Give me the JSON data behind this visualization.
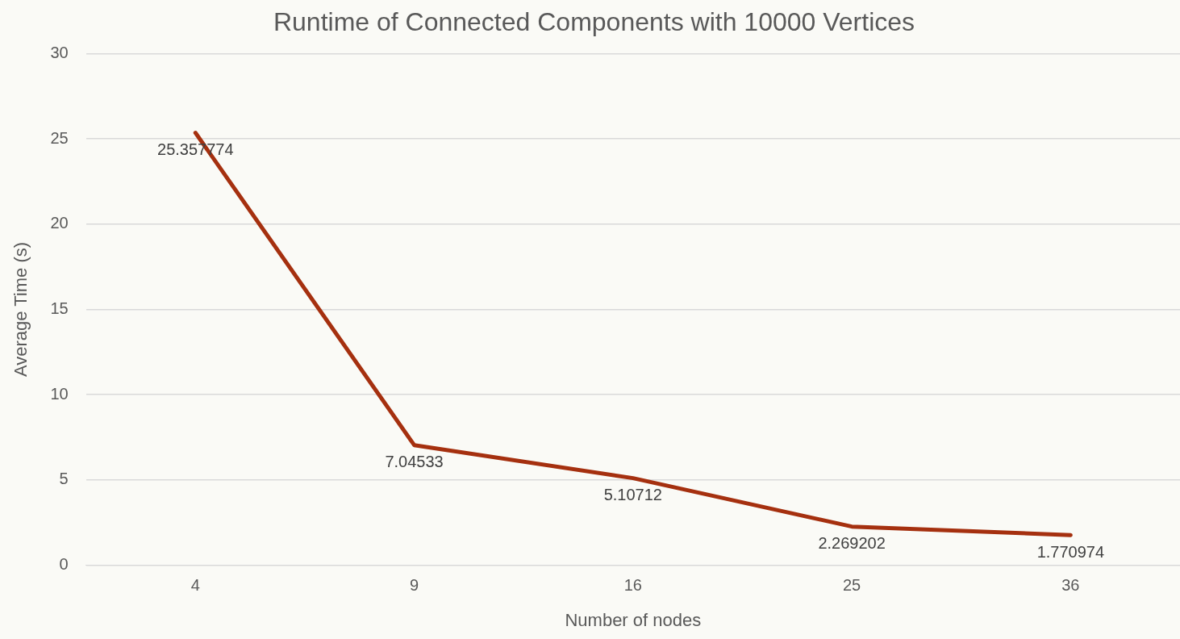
{
  "chart_data": {
    "type": "line",
    "title": "Runtime of Connected Components with 10000 Vertices",
    "xlabel": "Number of nodes",
    "ylabel": "Average Time (s)",
    "categories": [
      "4",
      "9",
      "16",
      "25",
      "36"
    ],
    "series": [
      {
        "color": "#a5300f",
        "values": [
          25.357774,
          7.04533,
          5.10712,
          2.269202,
          1.770974
        ]
      }
    ],
    "ylim": [
      0,
      30
    ],
    "yticks": [
      0,
      5,
      10,
      15,
      20,
      25,
      30
    ],
    "grid": "y",
    "legend": false,
    "marker": "none",
    "line_style": "solid",
    "data_labels": true
  }
}
